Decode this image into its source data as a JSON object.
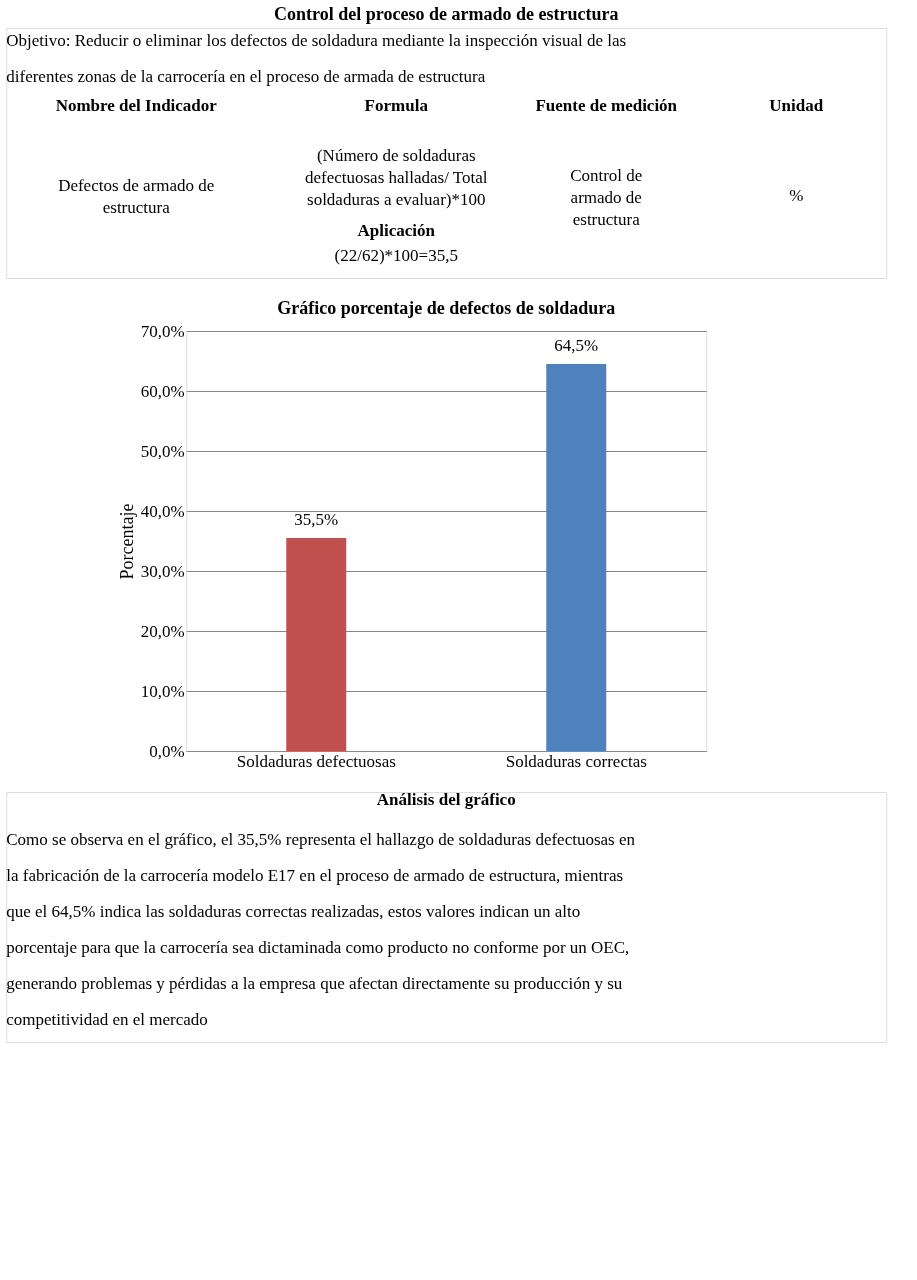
{
  "chart_data": {
    "type": "bar",
    "title": "Control del proceso de armado de estructura",
    "subtitle": "Gráfico porcentaje de defectos de soldadura",
    "categories": [
      "Soldaduras defectuosas",
      "Soldaduras correctas"
    ],
    "values": [
      35.5,
      64.5
    ],
    "colors": [
      "#c0504d",
      "#4f81bd"
    ],
    "value_labels": [
      "35,5%",
      "64,5%"
    ],
    "ylabel": "Porcentaje",
    "ylim": [
      0,
      70
    ],
    "yticks": [
      {
        "value": 0,
        "label": "0,0%"
      },
      {
        "value": 10,
        "label": "10,0%"
      },
      {
        "value": 20,
        "label": "20,0%"
      },
      {
        "value": 30,
        "label": "30,0%"
      },
      {
        "value": 40,
        "label": "40,0%"
      },
      {
        "value": 50,
        "label": "50,0%"
      },
      {
        "value": 60,
        "label": "60,0%"
      },
      {
        "value": 70,
        "label": "70,0%"
      }
    ],
    "grid": "y",
    "annotations": [
      "Objetivo: Reducir o eliminar los defectos de soldadura mediante la inspección visual de las diferentes zonas de la carrocería en el proceso de armada de estructura",
      "Nombre del Indicador",
      "Formula",
      "Fuente de medición",
      "Unidad",
      "Defectos de armado de estructura",
      "(Número de soldaduras defectuosas halladas/ Total soldaduras a evaluar)*100",
      "Aplicación",
      "(22/62)*100=35,5",
      "Control de armado de estructura",
      "%",
      "Análisis del gráfico",
      "Como se observa en el gráfico, el 35,5% representa el hallazgo de soldaduras defectuosas en la fabricación de la carrocería modelo E17 en el proceso de armado de estructura, mientras que el 64,5% indica las soldaduras correctas realizadas, estos valores indican un alto porcentaje para que la carrocería sea dictaminada como producto no conforme por un OEC, generando problemas y pérdidas a la empresa que afectan directamente su producción y su competitividad en el mercado"
    ]
  }
}
